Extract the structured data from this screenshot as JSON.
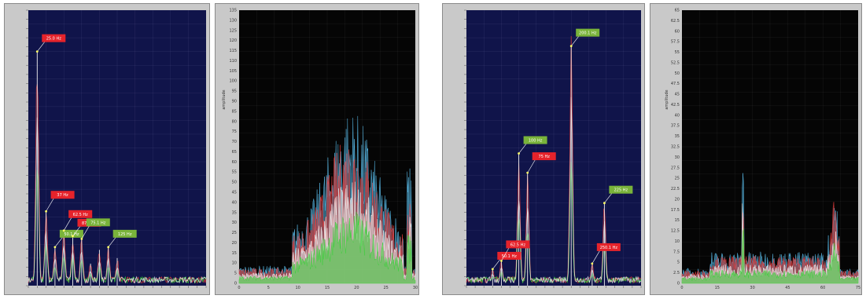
{
  "colors": {
    "plot_bg_blue": "#10144a",
    "plot_bg_black": "#050505",
    "frame": "#c9c9c9",
    "series_red": "#e03a3a",
    "series_green": "#3bd13b",
    "series_white": "#f2f2f2",
    "series_blue": "#56b4e0",
    "label_red": "#e5232b",
    "label_green": "#79b33a"
  },
  "chart_data": [
    {
      "type": "line",
      "panel": "p1",
      "background": "blue",
      "grid": true,
      "xlim": [
        0,
        500
      ],
      "ylim": [
        0,
        100
      ],
      "series": [
        {
          "color": "series_red"
        },
        {
          "color": "series_green"
        },
        {
          "color": "series_white"
        }
      ],
      "peaks": [
        {
          "x": 25,
          "y": 85
        },
        {
          "x": 50,
          "y": 27
        },
        {
          "x": 75,
          "y": 14
        },
        {
          "x": 100,
          "y": 20
        },
        {
          "x": 125,
          "y": 18
        },
        {
          "x": 150,
          "y": 17
        },
        {
          "x": 175,
          "y": 8
        },
        {
          "x": 200,
          "y": 13
        },
        {
          "x": 225,
          "y": 14
        },
        {
          "x": 250,
          "y": 10
        }
      ],
      "annotations": [
        {
          "text": "25.0 Hz",
          "color": "red",
          "x": 25,
          "y": 85
        },
        {
          "text": "37 Hz",
          "color": "red",
          "x": 50,
          "y": 27
        },
        {
          "text": "50.1 Hz",
          "color": "green",
          "x": 75,
          "y": 14
        },
        {
          "text": "62.5 Hz",
          "color": "red",
          "x": 100,
          "y": 20
        },
        {
          "text": "87.5 Hz",
          "color": "red",
          "x": 125,
          "y": 18
        },
        {
          "text": "75.1 Hz",
          "color": "green",
          "x": 150,
          "y": 17
        },
        {
          "text": "125 Hz",
          "color": "green",
          "x": 225,
          "y": 14
        }
      ]
    },
    {
      "type": "area",
      "panel": "p2",
      "background": "black",
      "grid": true,
      "ylabel": "amplitude",
      "xlim": [
        0,
        30
      ],
      "ylim": [
        0,
        135
      ],
      "xticks": [
        "0",
        "5",
        "10",
        "15",
        "20",
        "25",
        "30"
      ],
      "yticks": [
        "0",
        "5",
        "10",
        "15",
        "20",
        "25",
        "30",
        "35",
        "40",
        "45",
        "50",
        "55",
        "60",
        "65",
        "70",
        "75",
        "80",
        "85",
        "90",
        "95",
        "100",
        "105",
        "110",
        "115",
        "120",
        "125",
        "130",
        "135"
      ],
      "series": [
        {
          "color": "series_blue"
        },
        {
          "color": "series_red"
        },
        {
          "color": "series_white"
        },
        {
          "color": "series_green"
        }
      ]
    },
    {
      "type": "line",
      "panel": "p3",
      "background": "blue",
      "grid": true,
      "xlim": [
        0,
        500
      ],
      "ylim": [
        0,
        100
      ],
      "peaks": [
        {
          "x": 75,
          "y": 6
        },
        {
          "x": 100,
          "y": 9
        },
        {
          "x": 150,
          "y": 48
        },
        {
          "x": 175,
          "y": 41
        },
        {
          "x": 300,
          "y": 87
        },
        {
          "x": 360,
          "y": 8
        },
        {
          "x": 395,
          "y": 30
        }
      ],
      "annotations": [
        {
          "text": "50.1 Hz",
          "color": "red",
          "x": 75,
          "y": 6
        },
        {
          "text": "62.5 Hz",
          "color": "red",
          "x": 100,
          "y": 9
        },
        {
          "text": "100 Hz",
          "color": "green",
          "x": 150,
          "y": 48
        },
        {
          "text": "75 Hz",
          "color": "red",
          "x": 175,
          "y": 41
        },
        {
          "text": "200.1 Hz",
          "color": "green",
          "x": 300,
          "y": 87
        },
        {
          "text": "250.1 Hz",
          "color": "red",
          "x": 360,
          "y": 8
        },
        {
          "text": "225 Hz",
          "color": "green",
          "x": 395,
          "y": 30
        }
      ]
    },
    {
      "type": "area",
      "panel": "p4",
      "background": "black",
      "grid": true,
      "ylabel": "amplitude",
      "xlim": [
        0,
        75
      ],
      "ylim": [
        0,
        65
      ],
      "xticks": [
        "0",
        "15",
        "30",
        "45",
        "60",
        "75"
      ],
      "yticks": [
        "0",
        "2.5",
        "5",
        "7.5",
        "10",
        "12.5",
        "15",
        "17.5",
        "20",
        "22.5",
        "25",
        "27.5",
        "30",
        "32.5",
        "35",
        "37.5",
        "40",
        "42.5",
        "45",
        "47.5",
        "50",
        "52.5",
        "55",
        "57.5",
        "60",
        "62.5",
        "65"
      ],
      "series": [
        {
          "color": "series_blue"
        },
        {
          "color": "series_red"
        },
        {
          "color": "series_white"
        },
        {
          "color": "series_green"
        }
      ]
    }
  ]
}
